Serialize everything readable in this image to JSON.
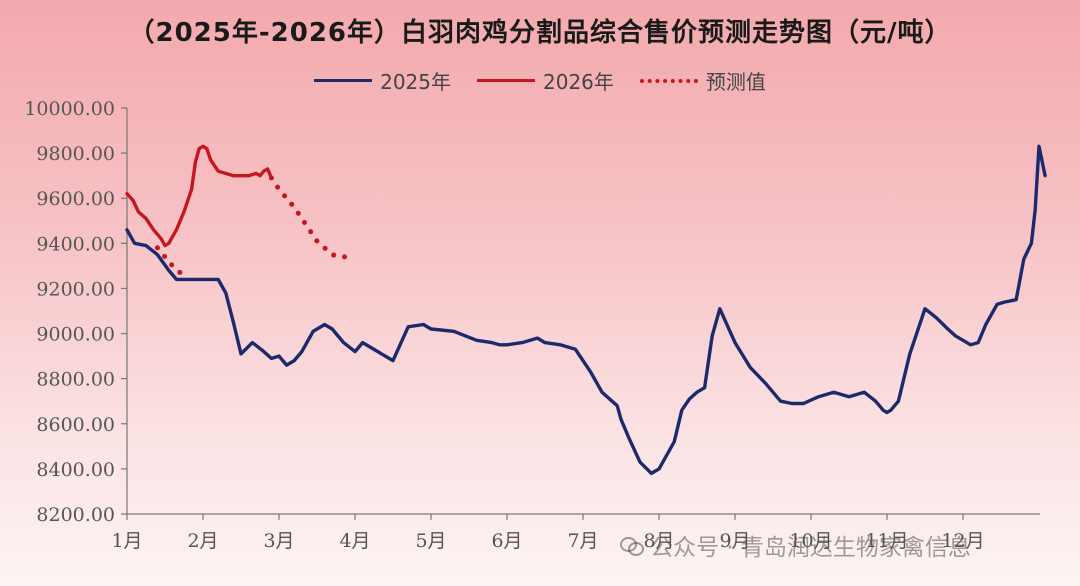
{
  "chart_data": {
    "type": "line",
    "title": "（2025年-2026年）白羽肉鸡分割品综合售价预测走势图（元/吨）",
    "xlabel": "",
    "ylabel": "",
    "ylim": [
      8200,
      10000
    ],
    "yticks": [
      10000,
      9800,
      9600,
      9400,
      9200,
      9000,
      8800,
      8600,
      8400,
      8200
    ],
    "ytick_labels": [
      "10000.00",
      "9800.00",
      "9600.00",
      "9400.00",
      "9200.00",
      "9000.00",
      "8800.00",
      "8600.00",
      "8400.00",
      "8200.00"
    ],
    "xlim": [
      1,
      13
    ],
    "x_ticks": [
      1,
      2,
      3,
      4,
      5,
      6,
      7,
      8,
      9,
      10,
      11,
      12
    ],
    "x_tick_labels": [
      "1月",
      "2月",
      "3月",
      "4月",
      "5月",
      "6月",
      "7月",
      "8月",
      "9月",
      "10月",
      "11月",
      "12月"
    ],
    "grid": false,
    "legend": "top-center",
    "series": [
      {
        "name": "2025年",
        "color": "#1b2a6b",
        "style": "solid",
        "x": [
          1.0,
          1.1,
          1.25,
          1.4,
          1.55,
          1.65,
          1.8,
          2.0,
          2.2,
          2.3,
          2.4,
          2.5,
          2.65,
          2.8,
          2.9,
          3.0,
          3.1,
          3.2,
          3.3,
          3.45,
          3.6,
          3.7,
          3.85,
          4.0,
          4.1,
          4.2,
          4.35,
          4.5,
          4.7,
          4.9,
          5.0,
          5.3,
          5.6,
          5.8,
          5.9,
          6.0,
          6.2,
          6.4,
          6.5,
          6.7,
          6.9,
          7.1,
          7.25,
          7.35,
          7.45,
          7.5,
          7.6,
          7.75,
          7.9,
          8.0,
          8.2,
          8.3,
          8.4,
          8.5,
          8.6,
          8.7,
          8.8,
          9.0,
          9.2,
          9.4,
          9.6,
          9.75,
          9.9,
          10.1,
          10.3,
          10.5,
          10.7,
          10.85,
          10.9,
          10.95,
          11.0,
          11.05,
          11.15,
          11.3,
          11.5,
          11.65,
          11.8,
          11.9,
          12.0,
          12.1,
          12.2,
          12.3,
          12.45,
          12.55,
          12.7,
          12.8,
          12.9,
          12.95,
          13.0,
          13.08
        ],
        "values": [
          9460,
          9400,
          9390,
          9350,
          9280,
          9240,
          9240,
          9240,
          9240,
          9180,
          9050,
          8910,
          8960,
          8920,
          8890,
          8900,
          8860,
          8880,
          8920,
          9010,
          9040,
          9020,
          8960,
          8920,
          8960,
          8940,
          8910,
          8880,
          9030,
          9040,
          9020,
          9010,
          8970,
          8960,
          8950,
          8950,
          8960,
          8980,
          8960,
          8950,
          8930,
          8830,
          8740,
          8710,
          8680,
          8620,
          8540,
          8430,
          8380,
          8400,
          8520,
          8660,
          8710,
          8740,
          8760,
          8990,
          9110,
          8960,
          8850,
          8780,
          8700,
          8690,
          8690,
          8720,
          8740,
          8720,
          8740,
          8700,
          8680,
          8660,
          8650,
          8660,
          8700,
          8910,
          9110,
          9070,
          9020,
          8990,
          8970,
          8950,
          8960,
          9040,
          9130,
          9140,
          9150,
          9330,
          9400,
          9550,
          9830,
          9700
        ]
      },
      {
        "name": "2026年",
        "color": "#c8161d",
        "style": "solid",
        "x": [
          1.0,
          1.08,
          1.15,
          1.25,
          1.35,
          1.45,
          1.5,
          1.55,
          1.65,
          1.75,
          1.85,
          1.9,
          1.95,
          2.0,
          2.05,
          2.1,
          2.2,
          2.3,
          2.4,
          2.5,
          2.6,
          2.7,
          2.75,
          2.8,
          2.85,
          2.9
        ],
        "values": [
          9620,
          9590,
          9540,
          9510,
          9460,
          9420,
          9390,
          9400,
          9460,
          9540,
          9640,
          9760,
          9820,
          9830,
          9820,
          9770,
          9720,
          9710,
          9700,
          9700,
          9700,
          9710,
          9700,
          9720,
          9730,
          9690
        ]
      },
      {
        "name": "预测值",
        "color": "#c8161d",
        "style": "dotted",
        "x": [
          2.9,
          3.0,
          3.1,
          3.2,
          3.3,
          3.4,
          3.5,
          3.6,
          3.7,
          3.8,
          3.9,
          4.0
        ],
        "values": [
          9690,
          9640,
          9600,
          9560,
          9510,
          9460,
          9410,
          9380,
          9350,
          9340,
          9340,
          9340
        ]
      },
      {
        "name": "",
        "color": "#c8161d",
        "style": "dotted",
        "x": [
          1.4,
          1.5,
          1.6,
          1.7
        ],
        "values": [
          9380,
          9340,
          9300,
          9270
        ]
      }
    ]
  },
  "legend": {
    "items": [
      {
        "label": "2025年",
        "color": "#1b2a6b",
        "style": "solid"
      },
      {
        "label": "2026年",
        "color": "#c8161d",
        "style": "solid"
      },
      {
        "label": "预测值",
        "color": "#c8161d",
        "style": "dotted"
      }
    ]
  },
  "watermark": {
    "text": "公众号 · 青岛润达生物家禽信息"
  }
}
